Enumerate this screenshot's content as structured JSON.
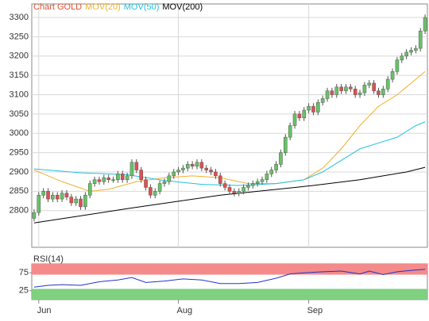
{
  "chart_data": [
    {
      "type": "candlestick",
      "title": "Chart GOLD",
      "xlim": [
        -0.5,
        84.5
      ],
      "ylim": [
        2705,
        3335
      ],
      "yticks": [
        2800,
        2850,
        2900,
        2950,
        3000,
        3050,
        3100,
        3150,
        3200,
        3250,
        3300
      ],
      "grid": true,
      "up_color": "#66c466",
      "down_color": "#e05050",
      "open": [
        2780,
        2795,
        2840,
        2850,
        2830,
        2840,
        2830,
        2845,
        2835,
        2820,
        2830,
        2810,
        2840,
        2870,
        2880,
        2875,
        2885,
        2880,
        2880,
        2895,
        2880,
        2890,
        2925,
        2905,
        2880,
        2860,
        2840,
        2850,
        2870,
        2875,
        2890,
        2900,
        2905,
        2910,
        2920,
        2915,
        2925,
        2910,
        2905,
        2900,
        2890,
        2870,
        2860,
        2850,
        2845,
        2850,
        2860,
        2865,
        2870,
        2875,
        2880,
        2895,
        2905,
        2920,
        2950,
        2990,
        3020,
        3050,
        3040,
        3060,
        3070,
        3055,
        3080,
        3090,
        3110,
        3100,
        3120,
        3110,
        3120,
        3115,
        3100,
        3105,
        3125,
        3130,
        3110,
        3100,
        3115,
        3140,
        3160,
        3190,
        3200,
        3210,
        3215,
        3220,
        3265
      ],
      "high": [
        2803,
        2848,
        2858,
        2858,
        2848,
        2848,
        2853,
        2853,
        2843,
        2838,
        2838,
        2848,
        2878,
        2888,
        2888,
        2893,
        2893,
        2888,
        2903,
        2903,
        2898,
        2933,
        2933,
        2913,
        2888,
        2868,
        2858,
        2878,
        2883,
        2898,
        2908,
        2913,
        2918,
        2928,
        2928,
        2933,
        2933,
        2918,
        2913,
        2908,
        2898,
        2878,
        2868,
        2858,
        2858,
        2868,
        2873,
        2878,
        2883,
        2888,
        2903,
        2913,
        2928,
        2958,
        2998,
        3028,
        3058,
        3058,
        3068,
        3078,
        3078,
        3088,
        3098,
        3118,
        3118,
        3128,
        3128,
        3128,
        3128,
        3123,
        3113,
        3133,
        3138,
        3138,
        3118,
        3123,
        3148,
        3168,
        3198,
        3208,
        3218,
        3223,
        3228,
        3273,
        3308
      ],
      "low": [
        2772,
        2787,
        2832,
        2822,
        2822,
        2822,
        2822,
        2827,
        2812,
        2812,
        2802,
        2802,
        2832,
        2862,
        2867,
        2867,
        2872,
        2872,
        2872,
        2872,
        2872,
        2882,
        2897,
        2872,
        2852,
        2832,
        2832,
        2842,
        2862,
        2867,
        2882,
        2892,
        2897,
        2902,
        2907,
        2907,
        2902,
        2897,
        2892,
        2882,
        2862,
        2852,
        2842,
        2837,
        2837,
        2842,
        2852,
        2857,
        2862,
        2867,
        2872,
        2887,
        2897,
        2912,
        2942,
        2982,
        3012,
        3032,
        3032,
        3052,
        3047,
        3047,
        3072,
        3082,
        3092,
        3092,
        3102,
        3102,
        3107,
        3092,
        3092,
        3097,
        3117,
        3102,
        3092,
        3092,
        3107,
        3132,
        3152,
        3182,
        3192,
        3202,
        3207,
        3212,
        3257
      ],
      "close": [
        2795,
        2840,
        2850,
        2830,
        2840,
        2830,
        2845,
        2835,
        2820,
        2830,
        2810,
        2840,
        2870,
        2880,
        2875,
        2885,
        2880,
        2880,
        2895,
        2880,
        2890,
        2925,
        2905,
        2880,
        2860,
        2840,
        2850,
        2870,
        2875,
        2890,
        2900,
        2905,
        2910,
        2920,
        2915,
        2925,
        2910,
        2905,
        2900,
        2890,
        2870,
        2860,
        2850,
        2845,
        2850,
        2860,
        2865,
        2870,
        2875,
        2880,
        2895,
        2905,
        2920,
        2950,
        2990,
        3020,
        3050,
        3040,
        3060,
        3070,
        3055,
        3080,
        3090,
        3110,
        3100,
        3120,
        3110,
        3120,
        3115,
        3100,
        3105,
        3125,
        3130,
        3110,
        3100,
        3115,
        3140,
        3160,
        3190,
        3200,
        3210,
        3215,
        3220,
        3265,
        3300
      ],
      "series": [
        {
          "name": "MOV(20)",
          "color": "#f0b030",
          "x": [
            0,
            6,
            12,
            16,
            22,
            28,
            34,
            40,
            46,
            52,
            58,
            62,
            66,
            70,
            74,
            78,
            82,
            84
          ],
          "values": [
            2905,
            2875,
            2850,
            2855,
            2875,
            2885,
            2890,
            2885,
            2870,
            2870,
            2880,
            2910,
            2960,
            3020,
            3070,
            3100,
            3140,
            3160
          ]
        },
        {
          "name": "MOV(50)",
          "color": "#20c0e0",
          "x": [
            0,
            10,
            20,
            28,
            36,
            44,
            52,
            58,
            62,
            66,
            70,
            74,
            78,
            82,
            84
          ],
          "values": [
            2908,
            2898,
            2893,
            2878,
            2868,
            2865,
            2870,
            2880,
            2900,
            2930,
            2960,
            2975,
            2990,
            3020,
            3030
          ]
        },
        {
          "name": "MOV(200)",
          "color": "#000000",
          "x": [
            0,
            20,
            40,
            60,
            70,
            80,
            84
          ],
          "values": [
            2768,
            2805,
            2840,
            2865,
            2880,
            2900,
            2912
          ]
        }
      ]
    },
    {
      "type": "line",
      "title": "RSI(14)",
      "xlim": [
        -0.5,
        84.5
      ],
      "xticks": [
        {
          "value": 1,
          "label": "Jun"
        },
        {
          "value": 31,
          "label": "Aug"
        },
        {
          "value": 59,
          "label": "Sep"
        }
      ],
      "ylim": [
        0,
        100
      ],
      "yticks": [
        25,
        75
      ],
      "bands": [
        {
          "from": 70,
          "to": 100,
          "color": "#f48a8a"
        },
        {
          "from": 0,
          "to": 30,
          "color": "#7fd07f"
        }
      ],
      "series": [
        {
          "color": "#2233cc",
          "x": [
            0,
            3,
            6,
            10,
            14,
            18,
            21,
            24,
            28,
            32,
            36,
            40,
            44,
            48,
            52,
            55,
            58,
            62,
            66,
            70,
            72,
            75,
            78,
            81,
            84
          ],
          "values": [
            35,
            40,
            42,
            40,
            50,
            55,
            62,
            48,
            52,
            58,
            55,
            45,
            45,
            48,
            60,
            72,
            75,
            78,
            80,
            72,
            80,
            70,
            78,
            82,
            85
          ]
        }
      ]
    }
  ]
}
